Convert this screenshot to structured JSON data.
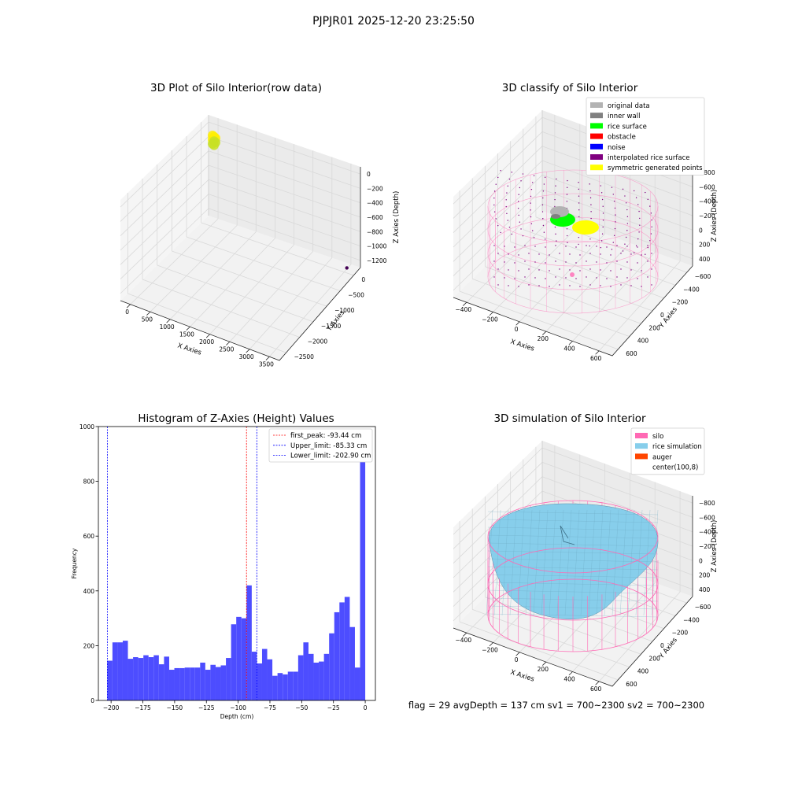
{
  "figure_title": "PJPJR01 2025-12-20 23:25:50",
  "footer": "flag = 29  avgDepth = 137 cm  sv1 = 700~2300  sv2 = 700~2300",
  "colors": {
    "rice_surface": "#00ff00",
    "inner_wall": "#808080",
    "original_data": "#b3b3b3",
    "obstacle": "#ff0000",
    "noise": "#0000ff",
    "interpolated": "#800080",
    "symmetric": "#ffff00",
    "silo": "#ff69b4",
    "rice_simulation": "#87ceeb",
    "auger": "#ff4500",
    "hist_bar": "#4d4dff"
  },
  "chart_data": [
    {
      "type": "scatter",
      "title": "3D Plot of Silo Interior(row data)",
      "xlabel": "X Axies",
      "ylabel": "Y Axies",
      "zlabel": "Z Axies (Depth)",
      "x_ticks": [
        "0",
        "500",
        "1000",
        "1500",
        "2000",
        "2500",
        "3000",
        "3500"
      ],
      "y_ticks": [
        "0",
        "−500",
        "−1000",
        "−1500",
        "−2000",
        "−2500"
      ],
      "z_ticks": [
        "0",
        "−200",
        "−400",
        "−600",
        "−800",
        "−1000",
        "−1200"
      ],
      "xlim": [
        -200,
        3700
      ],
      "ylim": [
        -2700,
        100
      ],
      "zlim": [
        -1350,
        50
      ],
      "points": [
        {
          "x": 0,
          "y": 0,
          "z": 0,
          "color": "#ffee00"
        },
        {
          "x": 3500,
          "y": -2500,
          "z": -1300,
          "color": "#440154"
        }
      ]
    },
    {
      "type": "scatter",
      "title": "3D classify of Silo Interior",
      "xlabel": "X Axies",
      "ylabel": "Y Axies",
      "zlabel": "Z Axies (Depth)",
      "x_ticks": [
        "−400",
        "−200",
        "0",
        "200",
        "400",
        "600"
      ],
      "y_ticks": [
        "−600",
        "−400",
        "−200",
        "0",
        "200",
        "400",
        "600"
      ],
      "z_ticks": [
        "−800",
        "−600",
        "−400",
        "−200",
        "0",
        "200",
        "400"
      ],
      "xlim": [
        -550,
        700
      ],
      "ylim": [
        -700,
        700
      ],
      "zlim": [
        -900,
        420
      ],
      "legend_position": "top-right",
      "legend": [
        {
          "label": "original data",
          "color": "#b3b3b3"
        },
        {
          "label": "inner wall",
          "color": "#808080"
        },
        {
          "label": "rice surface",
          "color": "#00ff00"
        },
        {
          "label": "obstacle",
          "color": "#ff0000"
        },
        {
          "label": "noise",
          "color": "#0000ff"
        },
        {
          "label": "interpolated rice surface",
          "color": "#800080"
        },
        {
          "label": "symmetric generated points",
          "color": "#ffff00"
        }
      ]
    },
    {
      "type": "bar",
      "title": "Histogram of Z-Axies (Height) Values",
      "xlabel": "Depth (cm)",
      "ylabel": "Frequency",
      "xlim": [
        -210,
        8
      ],
      "ylim": [
        0,
        1000
      ],
      "x_ticks": [
        -200,
        -175,
        -150,
        -125,
        -100,
        -75,
        -50,
        -25,
        0
      ],
      "x_tick_labels": [
        "−200",
        "−175",
        "−150",
        "−125",
        "−100",
        "−75",
        "−50",
        "−25",
        "0"
      ],
      "y_ticks": [
        0,
        200,
        400,
        600,
        800,
        1000
      ],
      "bin_start": -203.0,
      "bin_width": 4.06,
      "values": [
        145,
        212,
        212,
        218,
        152,
        158,
        155,
        165,
        158,
        165,
        132,
        160,
        112,
        118,
        118,
        120,
        120,
        120,
        138,
        112,
        130,
        122,
        128,
        155,
        278,
        305,
        300,
        420,
        178,
        135,
        188,
        150,
        90,
        100,
        95,
        105,
        105,
        165,
        212,
        170,
        138,
        142,
        170,
        245,
        322,
        358,
        378,
        268,
        120,
        955
      ],
      "vlines": [
        {
          "x": -93.44,
          "label": "first_peak: -93.44 cm",
          "color": "#ff0000"
        },
        {
          "x": -85.33,
          "label": "Upper_limit: -85.33 cm",
          "color": "#0000ff"
        },
        {
          "x": -202.9,
          "label": "Lower_limit: -202.90 cm",
          "color": "#0000ff"
        }
      ],
      "legend_position": "top-right"
    },
    {
      "type": "surface",
      "title": "3D simulation of Silo Interior",
      "xlabel": "X Axies",
      "ylabel": "Y Axies",
      "zlabel": "Z Axies (Depth)",
      "x_ticks": [
        "−400",
        "−200",
        "0",
        "200",
        "400",
        "600"
      ],
      "y_ticks": [
        "−600",
        "−400",
        "−200",
        "0",
        "200",
        "400",
        "600"
      ],
      "z_ticks": [
        "−800",
        "−600",
        "−400",
        "−200",
        "0",
        "200",
        "400"
      ],
      "xlim": [
        -550,
        700
      ],
      "ylim": [
        -700,
        700
      ],
      "zlim": [
        -900,
        420
      ],
      "legend_position": "top-right",
      "legend": [
        {
          "label": "silo",
          "color": "#ff69b4"
        },
        {
          "label": "rice simulation",
          "color": "#87ceeb"
        },
        {
          "label": "auger",
          "color": "#ff4500"
        },
        {
          "label": "center(100,8)",
          "color": "none"
        }
      ]
    }
  ]
}
